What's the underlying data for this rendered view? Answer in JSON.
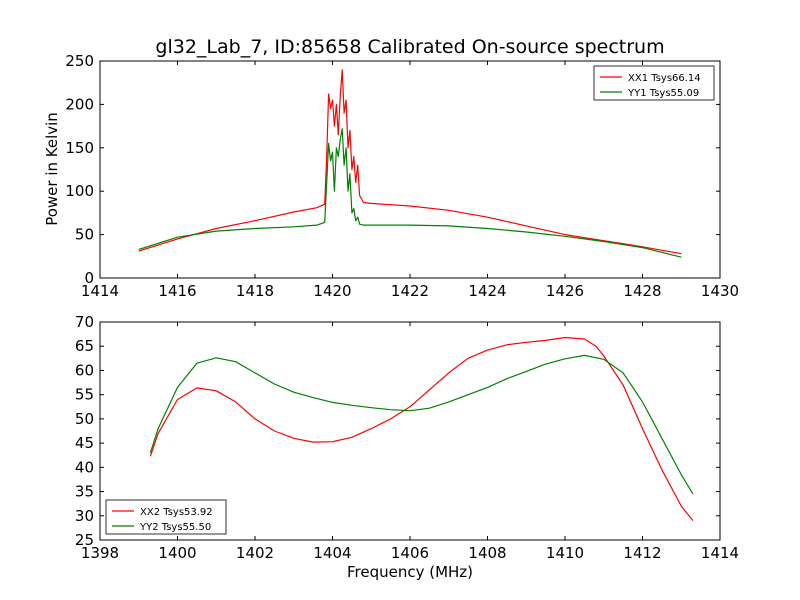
{
  "chart_data": [
    {
      "type": "line",
      "title": "gl32_Lab_7, ID:85658 Calibrated On-source spectrum",
      "xlabel": "",
      "ylabel": "Power in Kelvin",
      "xlim": [
        1414,
        1430
      ],
      "ylim": [
        0,
        250
      ],
      "xticks": [
        "1414",
        "1416",
        "1418",
        "1420",
        "1422",
        "1424",
        "1426",
        "1428",
        "1430"
      ],
      "yticks": [
        "0",
        "50",
        "100",
        "150",
        "200",
        "250"
      ],
      "legend_position": "top-right",
      "grid": false,
      "series": [
        {
          "name": "XX1 Tsys66.14",
          "color": "#ff0000",
          "x": [
            1415.0,
            1416.0,
            1417.0,
            1418.0,
            1419.0,
            1419.6,
            1419.8,
            1419.85,
            1419.9,
            1419.95,
            1420.0,
            1420.05,
            1420.1,
            1420.15,
            1420.2,
            1420.25,
            1420.3,
            1420.35,
            1420.4,
            1420.45,
            1420.5,
            1420.55,
            1420.6,
            1420.65,
            1420.7,
            1420.8,
            1421.0,
            1422.0,
            1423.0,
            1424.0,
            1425.0,
            1426.0,
            1427.0,
            1428.0,
            1429.0
          ],
          "y": [
            31,
            45,
            57,
            66,
            76,
            81,
            85,
            140,
            212,
            195,
            205,
            175,
            200,
            165,
            210,
            240,
            190,
            205,
            150,
            170,
            125,
            140,
            110,
            130,
            95,
            87,
            86,
            83,
            78,
            70,
            60,
            50,
            43,
            36,
            28
          ]
        },
        {
          "name": "YY1 Tsys55.09",
          "color": "#008000",
          "x": [
            1415.0,
            1416.0,
            1417.0,
            1418.0,
            1419.0,
            1419.6,
            1419.8,
            1419.85,
            1419.9,
            1419.95,
            1420.0,
            1420.05,
            1420.1,
            1420.15,
            1420.2,
            1420.25,
            1420.3,
            1420.35,
            1420.4,
            1420.45,
            1420.5,
            1420.55,
            1420.6,
            1420.65,
            1420.7,
            1420.8,
            1421.0,
            1422.0,
            1423.0,
            1424.0,
            1425.0,
            1426.0,
            1427.0,
            1428.0,
            1429.0
          ],
          "y": [
            33,
            47,
            54,
            57,
            59,
            61,
            64,
            110,
            155,
            135,
            145,
            100,
            150,
            140,
            160,
            172,
            130,
            150,
            100,
            120,
            75,
            80,
            66,
            70,
            62,
            61,
            61,
            61,
            60,
            57,
            53,
            48,
            42,
            35,
            24
          ]
        }
      ]
    },
    {
      "type": "line",
      "title": "",
      "xlabel": "Frequency (MHz)",
      "ylabel": "",
      "xlim": [
        1398,
        1414
      ],
      "ylim": [
        25,
        70
      ],
      "xticks": [
        "1398",
        "1400",
        "1402",
        "1404",
        "1406",
        "1408",
        "1410",
        "1412",
        "1414"
      ],
      "yticks": [
        "25",
        "30",
        "35",
        "40",
        "45",
        "50",
        "55",
        "60",
        "65",
        "70"
      ],
      "legend_position": "bottom-left",
      "grid": false,
      "series": [
        {
          "name": "XX2 Tsys53.92",
          "color": "#ff0000",
          "x": [
            1399.3,
            1399.5,
            1400.0,
            1400.5,
            1401.0,
            1401.5,
            1402.0,
            1402.5,
            1403.0,
            1403.5,
            1404.0,
            1404.5,
            1405.0,
            1405.5,
            1406.0,
            1406.5,
            1407.0,
            1407.5,
            1408.0,
            1408.5,
            1409.0,
            1409.5,
            1410.0,
            1410.5,
            1410.8,
            1411.0,
            1411.5,
            1412.0,
            1412.5,
            1413.0,
            1413.3
          ],
          "y": [
            42.3,
            47,
            54,
            56.4,
            55.8,
            53.5,
            50,
            47.5,
            46,
            45.2,
            45.3,
            46.2,
            48,
            50,
            52.5,
            56,
            59.5,
            62.5,
            64.2,
            65.3,
            65.8,
            66.2,
            66.8,
            66.5,
            65,
            63,
            57,
            48,
            39.5,
            32,
            29
          ]
        },
        {
          "name": "YY2 Tsys55.50",
          "color": "#008000",
          "x": [
            1399.3,
            1399.5,
            1400.0,
            1400.5,
            1401.0,
            1401.5,
            1402.0,
            1402.5,
            1403.0,
            1403.5,
            1404.0,
            1404.5,
            1405.0,
            1405.5,
            1406.0,
            1406.5,
            1407.0,
            1407.5,
            1408.0,
            1408.5,
            1409.0,
            1409.5,
            1410.0,
            1410.5,
            1411.0,
            1411.5,
            1412.0,
            1412.5,
            1413.0,
            1413.3
          ],
          "y": [
            43,
            48,
            56.5,
            61.5,
            62.6,
            61.8,
            59.5,
            57.2,
            55.5,
            54.4,
            53.4,
            52.8,
            52.3,
            51.9,
            51.7,
            52.2,
            53.5,
            55,
            56.5,
            58.3,
            59.8,
            61.3,
            62.4,
            63.1,
            62.3,
            59.5,
            53.5,
            46,
            38.5,
            34.5
          ]
        }
      ]
    }
  ]
}
